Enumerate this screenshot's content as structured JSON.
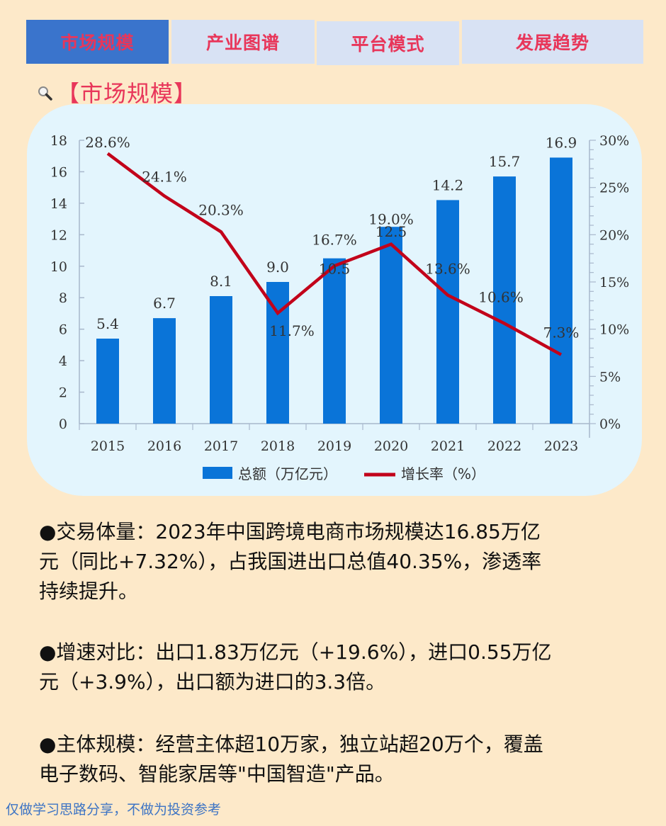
{
  "tabs": [
    {
      "label": "市场规模",
      "active": true
    },
    {
      "label": "产业图谱",
      "active": false
    },
    {
      "label": "平台模式",
      "active": false
    },
    {
      "label": "发展趋势",
      "active": false
    }
  ],
  "section": {
    "icon": "magnifier-icon",
    "title": "【市场规模】"
  },
  "chart_data": {
    "type": "bar+line",
    "title": "",
    "categories": [
      "2015",
      "2016",
      "2017",
      "2018",
      "2019",
      "2020",
      "2021",
      "2022",
      "2023"
    ],
    "series": [
      {
        "name": "总额（万亿元）",
        "type": "bar",
        "axis": "left",
        "color": "#0a74d8",
        "values": [
          5.4,
          6.7,
          8.1,
          9.0,
          10.5,
          12.5,
          14.2,
          15.7,
          16.9
        ],
        "labels": [
          "5.4",
          "6.7",
          "8.1",
          "9.0",
          "10.5",
          "12.5",
          "14.2",
          "15.7",
          "16.9"
        ]
      },
      {
        "name": "增长率（%）",
        "type": "line",
        "axis": "right",
        "color": "#c2021a",
        "values": [
          28.6,
          24.1,
          20.3,
          11.7,
          16.7,
          19.0,
          13.6,
          10.6,
          7.3
        ],
        "labels": [
          "28.6%",
          "24.1%",
          "20.3%",
          "11.7%",
          "16.7%",
          "19.0%",
          "13.6%",
          "10.6%",
          "7.3%"
        ]
      }
    ],
    "left_axis": {
      "ylim": [
        0,
        18
      ],
      "ticks": [
        "0",
        "2",
        "4",
        "6",
        "8",
        "10",
        "12",
        "14",
        "16",
        "18"
      ]
    },
    "right_axis": {
      "ylim": [
        0,
        30
      ],
      "ticks": [
        "0%",
        "5%",
        "10%",
        "15%",
        "20%",
        "25%",
        "30%"
      ]
    },
    "xlabel": "",
    "ylabel": "",
    "grid": false,
    "legend_position": "bottom"
  },
  "paragraphs": [
    {
      "lines": [
        "●交易体量：2023年中国跨境电商市场规模达16.85万亿",
        "元（同比+7.32%），占我国进出口总值40.35%，渗透率",
        "持续提升。"
      ]
    },
    {
      "lines": [
        "●增速对比：出口1.83万亿元（+19.6%），进口0.55万亿",
        "元（+3.9%），出口额为进口的3.3倍。"
      ]
    },
    {
      "lines": [
        "●主体规模：经营主体超10万家，独立站超20万个，覆盖",
        "电子数码、智能家居等\"中国智造\"产品。"
      ]
    }
  ],
  "footer": "仅做学习思路分享，不做为投资参考"
}
